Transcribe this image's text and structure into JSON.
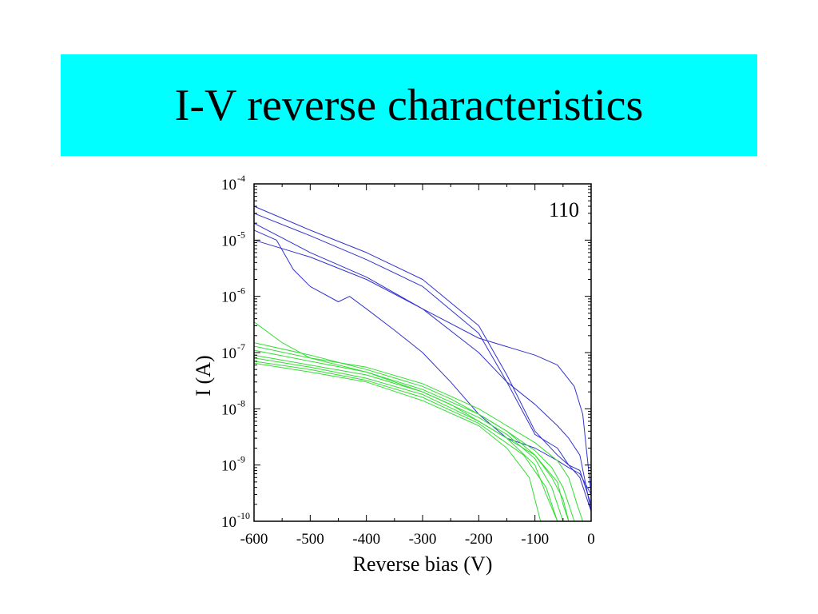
{
  "slide": {
    "title": "I-V reverse characteristics",
    "banner_color": "#00ffff"
  },
  "chart_data": {
    "type": "line",
    "xlabel": "Reverse bias (V)",
    "ylabel": "I (A)",
    "annotation": "110",
    "xlim": [
      -600,
      0
    ],
    "ylim": [
      1e-10,
      0.0001
    ],
    "y_scale": "log",
    "x_ticks": [
      -600,
      -500,
      -400,
      -300,
      -200,
      -100,
      0
    ],
    "x_tick_labels": [
      "-600",
      "-500",
      "-400",
      "-300",
      "-200",
      "-100",
      "0"
    ],
    "y_ticks": [
      {
        "base": "10",
        "exp": "-4"
      },
      {
        "base": "10",
        "exp": "-5"
      },
      {
        "base": "10",
        "exp": "-6"
      },
      {
        "base": "10",
        "exp": "-7"
      },
      {
        "base": "10",
        "exp": "-8"
      },
      {
        "base": "10",
        "exp": "-9"
      },
      {
        "base": "10",
        "exp": "-10"
      }
    ],
    "grid": false,
    "colors": {
      "blue": "#3333cc",
      "green": "#33dd33"
    },
    "series": [
      {
        "color": "blue",
        "x": [
          -600,
          -500,
          -400,
          -300,
          -200,
          -150,
          -100,
          -60,
          -40,
          -20,
          0
        ],
        "y": [
          4e-05,
          1.5e-05,
          6e-06,
          2e-06,
          3e-07,
          4e-08,
          4e-09,
          1.5e-09,
          1e-09,
          8e-10,
          2e-10
        ]
      },
      {
        "color": "blue",
        "x": [
          -600,
          -500,
          -400,
          -300,
          -200,
          -150,
          -100,
          -60,
          -40,
          -20,
          0
        ],
        "y": [
          3e-05,
          1.2e-05,
          4.5e-06,
          1.5e-06,
          2.2e-07,
          3e-08,
          3.5e-09,
          2e-09,
          1e-09,
          6e-10,
          1.5e-10
        ]
      },
      {
        "color": "blue",
        "x": [
          -600,
          -500,
          -400,
          -300,
          -200,
          -150,
          -100,
          -60,
          -40,
          -20,
          0
        ],
        "y": [
          2e-05,
          6e-06,
          2.2e-06,
          6e-07,
          1e-07,
          3e-08,
          1.2e-08,
          5e-09,
          3e-09,
          1.5e-09,
          1.5e-10
        ]
      },
      {
        "color": "blue",
        "x": [
          -600,
          -500,
          -400,
          -300,
          -200,
          -100,
          -60,
          -30,
          -15,
          0
        ],
        "y": [
          1e-05,
          5e-06,
          2e-06,
          6e-07,
          1.8e-07,
          9e-08,
          6e-08,
          2.5e-08,
          8e-09,
          3e-10
        ]
      },
      {
        "color": "blue",
        "x": [
          -600,
          -560,
          -530,
          -500,
          -450,
          -430,
          -400,
          -350,
          -300,
          -250,
          -200,
          -150,
          -100,
          -60,
          -40,
          -20,
          0
        ],
        "y": [
          1.5e-05,
          1e-05,
          3e-06,
          1.5e-06,
          8e-07,
          1e-06,
          6e-07,
          2.5e-07,
          1e-07,
          3e-08,
          8e-09,
          3e-09,
          2e-09,
          1.2e-09,
          9e-10,
          7e-10,
          3e-10
        ]
      },
      {
        "color": "green",
        "x": [
          -600,
          -550,
          -500,
          -400,
          -300,
          -250,
          -200,
          -150,
          -100,
          -60,
          -50,
          -40
        ],
        "y": [
          3.5e-07,
          1.5e-07,
          8e-08,
          4.5e-08,
          2e-08,
          1.2e-08,
          6e-09,
          3e-09,
          1.5e-09,
          5e-10,
          2e-10,
          1e-10
        ]
      },
      {
        "color": "green",
        "x": [
          -600,
          -500,
          -400,
          -300,
          -250,
          -200,
          -150,
          -100,
          -70,
          -50,
          -40,
          -30
        ],
        "y": [
          1.5e-07,
          9e-08,
          5e-08,
          2.5e-08,
          1.5e-08,
          8e-09,
          4e-09,
          1.8e-09,
          9e-10,
          4e-10,
          2e-10,
          1e-10
        ]
      },
      {
        "color": "green",
        "x": [
          -600,
          -500,
          -400,
          -300,
          -200,
          -150,
          -100,
          -60,
          -40,
          -25,
          -15
        ],
        "y": [
          1.3e-07,
          8e-08,
          5.5e-08,
          2.8e-08,
          1e-08,
          5e-09,
          2.5e-09,
          1.2e-09,
          6e-10,
          2e-10,
          1e-10
        ]
      },
      {
        "color": "green",
        "x": [
          -600,
          -500,
          -400,
          -300,
          -200,
          -150,
          -100,
          -70,
          -50,
          -40
        ],
        "y": [
          1.1e-07,
          7e-08,
          4.5e-08,
          2.2e-08,
          8e-09,
          4e-09,
          1.5e-09,
          6e-10,
          2.5e-10,
          1e-10
        ]
      },
      {
        "color": "green",
        "x": [
          -600,
          -500,
          -400,
          -300,
          -200,
          -150,
          -100,
          -70,
          -50
        ],
        "y": [
          9e-08,
          6e-08,
          4e-08,
          2e-08,
          7e-09,
          3.5e-09,
          1.3e-09,
          4e-10,
          1e-10
        ]
      },
      {
        "color": "green",
        "x": [
          -600,
          -500,
          -400,
          -300,
          -200,
          -150,
          -100,
          -80,
          -60
        ],
        "y": [
          8e-08,
          5.5e-08,
          3.5e-08,
          1.8e-08,
          6e-09,
          3e-09,
          1e-09,
          3e-10,
          1e-10
        ]
      },
      {
        "color": "green",
        "x": [
          -600,
          -500,
          -400,
          -300,
          -200,
          -120,
          -80,
          -60
        ],
        "y": [
          7e-08,
          5e-08,
          3.2e-08,
          1.6e-08,
          5.5e-09,
          1.5e-09,
          4e-10,
          1e-10
        ]
      },
      {
        "color": "green",
        "x": [
          -600,
          -500,
          -400,
          -300,
          -200,
          -150,
          -110,
          -90
        ],
        "y": [
          6.5e-08,
          4.5e-08,
          3e-08,
          1.4e-08,
          5e-09,
          2e-09,
          6e-10,
          1e-10
        ]
      }
    ]
  }
}
